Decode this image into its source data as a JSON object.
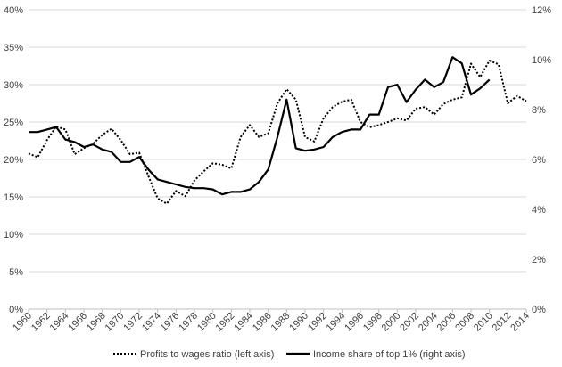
{
  "chart_data": {
    "type": "line",
    "title": "",
    "xlabel": "",
    "ylabel_left": "",
    "ylabel_right": "",
    "x_ticks": [
      "1960",
      "1962",
      "1964",
      "1966",
      "1968",
      "1970",
      "1972",
      "1974",
      "1976",
      "1978",
      "1980",
      "1982",
      "1984",
      "1986",
      "1988",
      "1990",
      "1992",
      "1994",
      "1996",
      "1998",
      "2000",
      "2002",
      "2004",
      "2006",
      "2008",
      "2010",
      "2012",
      "2014"
    ],
    "y_left": {
      "ticks": [
        "0%",
        "5%",
        "10%",
        "15%",
        "20%",
        "25%",
        "30%",
        "35%",
        "40%"
      ],
      "range": [
        0,
        40
      ]
    },
    "y_right": {
      "ticks": [
        "0%",
        "2%",
        "4%",
        "6%",
        "8%",
        "10%",
        "12%"
      ],
      "range": [
        0,
        12
      ]
    },
    "grid": "horizontal",
    "legend_position": "bottom",
    "series": [
      {
        "name": "Profits to wages ratio (left axis)",
        "axis": "left",
        "style": "dotted",
        "color": "#000000",
        "x": [
          1960,
          1961,
          1962,
          1963,
          1964,
          1965,
          1966,
          1967,
          1968,
          1969,
          1970,
          1971,
          1972,
          1973,
          1974,
          1975,
          1976,
          1977,
          1978,
          1979,
          1980,
          1981,
          1982,
          1983,
          1984,
          1985,
          1986,
          1987,
          1988,
          1989,
          1990,
          1991,
          1992,
          1993,
          1994,
          1995,
          1996,
          1997,
          1998,
          1999,
          2000,
          2001,
          2002,
          2003,
          2004,
          2005,
          2006,
          2007,
          2008,
          2009,
          2010,
          2011,
          2012,
          2013,
          2014
        ],
        "y": [
          20.8,
          20.3,
          22.6,
          24.4,
          24.0,
          20.7,
          21.5,
          22.1,
          23.3,
          24.1,
          22.6,
          20.7,
          20.9,
          17.8,
          14.8,
          14.1,
          15.8,
          15.1,
          17.2,
          18.4,
          19.5,
          19.3,
          18.8,
          23.0,
          24.6,
          23.0,
          23.5,
          27.5,
          29.4,
          28.0,
          23.0,
          22.4,
          25.5,
          27.0,
          27.7,
          28.0,
          25.0,
          24.3,
          24.6,
          25.0,
          25.5,
          25.2,
          26.8,
          27.0,
          26.0,
          27.4,
          28.0,
          28.3,
          32.8,
          31.0,
          33.2,
          32.7,
          27.5,
          28.5,
          27.8
        ]
      },
      {
        "name": "Income share of top 1% (right axis)",
        "axis": "right",
        "style": "solid",
        "color": "#000000",
        "x": [
          1960,
          1961,
          1962,
          1963,
          1964,
          1965,
          1966,
          1967,
          1968,
          1969,
          1970,
          1971,
          1972,
          1973,
          1974,
          1975,
          1976,
          1977,
          1978,
          1979,
          1980,
          1981,
          1982,
          1983,
          1984,
          1985,
          1986,
          1987,
          1988,
          1989,
          1990,
          1991,
          1992,
          1993,
          1994,
          1995,
          1996,
          1997,
          1998,
          1999,
          2000,
          2001,
          2002,
          2003,
          2004,
          2005,
          2006,
          2007,
          2008,
          2009,
          2010
        ],
        "y": [
          7.1,
          7.1,
          7.2,
          7.3,
          6.8,
          6.7,
          6.5,
          6.6,
          6.4,
          6.3,
          5.9,
          5.9,
          6.1,
          5.6,
          5.2,
          5.1,
          5.0,
          4.9,
          4.85,
          4.85,
          4.8,
          4.6,
          4.7,
          4.7,
          4.8,
          5.1,
          5.6,
          6.9,
          8.4,
          6.45,
          6.35,
          6.4,
          6.5,
          6.9,
          7.1,
          7.2,
          7.2,
          7.8,
          7.8,
          8.9,
          9.0,
          8.3,
          8.8,
          9.2,
          8.9,
          9.1,
          10.1,
          9.85,
          8.6,
          8.85,
          9.2
        ]
      }
    ]
  }
}
